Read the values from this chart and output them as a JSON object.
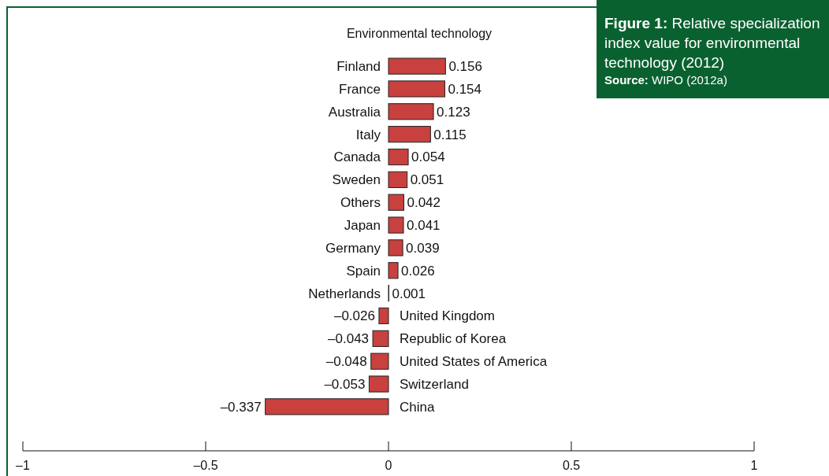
{
  "chart_data": {
    "type": "bar",
    "orientation": "horizontal",
    "title": "Environmental technology",
    "subtitle": "Figure 1: Relative specialization index value for environmental technology (2012)",
    "annotations": [
      "Source: WIPO (2012a)"
    ],
    "categories": [
      "Finland",
      "France",
      "Australia",
      "Italy",
      "Canada",
      "Sweden",
      "Others",
      "Japan",
      "Germany",
      "Spain",
      "Netherlands",
      "United Kingdom",
      "Republic of Korea",
      "United States of America",
      "Switzerland",
      "China"
    ],
    "values": [
      0.156,
      0.154,
      0.123,
      0.115,
      0.054,
      0.051,
      0.042,
      0.041,
      0.039,
      0.026,
      0.001,
      -0.026,
      -0.043,
      -0.048,
      -0.053,
      -0.337
    ],
    "value_labels": [
      "0.156",
      "0.154",
      "0.123",
      "0.115",
      "0.054",
      "0.051",
      "0.042",
      "0.041",
      "0.039",
      "0.026",
      "0.001",
      "–0.026",
      "–0.043",
      "–0.048",
      "–0.053",
      "–0.337"
    ],
    "color": "#c8413f",
    "xlim": [
      -1,
      1
    ],
    "xticks": [
      {
        "value": -1,
        "label": "–1"
      },
      {
        "value": -0.5,
        "label": "–0.5"
      },
      0,
      0.5,
      1
    ]
  }
}
